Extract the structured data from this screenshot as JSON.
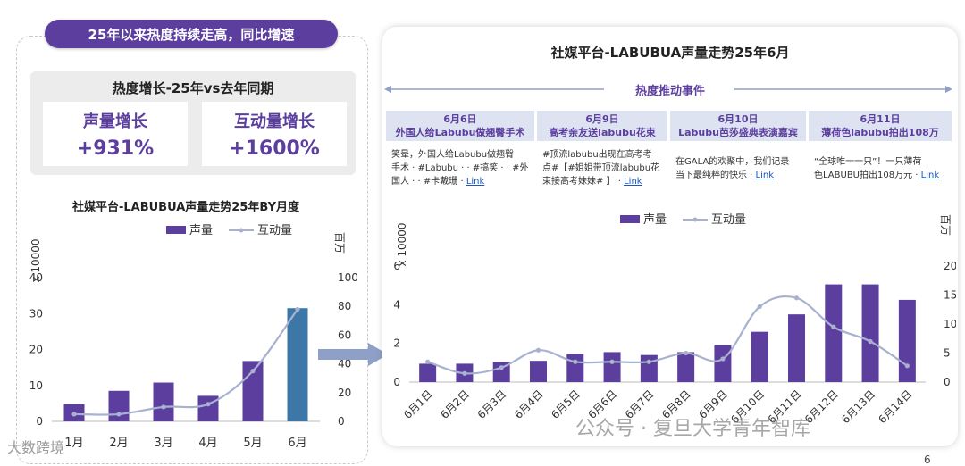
{
  "left": {
    "pill_text": "25年以来热度持续走高，同比增速",
    "growth_title": "热度增长-25年vs去年同期",
    "cards": [
      {
        "label": "声量增长",
        "value": "+931%"
      },
      {
        "label": "互动量增长",
        "value": "+1600%"
      }
    ]
  },
  "right": {
    "title": "社媒平台-LABUBUA声量走势25年6月",
    "events_header": "热度推动事件",
    "events": [
      {
        "date": "6月6日",
        "headline": "外国人给Labubu做翘臀手术",
        "lines": [
          "笑晕，外国人给Labubu做翘臀",
          "手术 · #Labubu · · #搞笑 · · #外",
          "国人 · · #卡戴珊 · "
        ],
        "link": "Link"
      },
      {
        "date": "6月9日",
        "headline": "高考亲友送labubu花束",
        "lines": [
          "#顶流labubu出现在高考考",
          "点#【#姐姐带顶流labubu花",
          "束接高考妹妹# 】 · "
        ],
        "link": "Link"
      },
      {
        "date": "6月10日",
        "headline": "Labubu芭莎盛典表演嘉宾",
        "lines": [
          "在GALA的欢聚中，我们记录",
          "当下最纯粹的快乐 · "
        ],
        "link": "Link"
      },
      {
        "date": "6月11日",
        "headline": "薄荷色labubu拍出108万",
        "lines": [
          "“全球唯一一只”！一只薄荷",
          "色LABUBU拍出108万元 · "
        ],
        "link": "Link"
      }
    ]
  },
  "chart_data": [
    {
      "type": "bar",
      "title": "社媒平台-LABUBUA声量走势25年BY月度",
      "categories": [
        "1月",
        "2月",
        "3月",
        "4月",
        "5月",
        "6月"
      ],
      "series": [
        {
          "name": "声量",
          "type": "bar",
          "axis": "left",
          "values": [
            4.8,
            8.5,
            10.8,
            7.1,
            16.8,
            31.5
          ]
        },
        {
          "name": "互动量",
          "type": "line",
          "axis": "right",
          "values": [
            5,
            5,
            10,
            12,
            35,
            78
          ]
        }
      ],
      "y_left_label": "x 10000",
      "y_left_ticks": [
        "0",
        "10",
        "20",
        "30",
        "40"
      ],
      "y_left_lim": [
        0,
        40
      ],
      "y_right_label": "百万",
      "y_right_ticks": [
        "0",
        "20",
        "40",
        "60",
        "80",
        "100"
      ],
      "y_right_lim": [
        0,
        100
      ],
      "legend": "top-center",
      "highlight_color": "#3d77a8",
      "bar_color": "#5b3e9e",
      "line_color": "#a8b2d0"
    },
    {
      "type": "bar",
      "title": "社媒平台-LABUBUA声量走势25年6月",
      "categories": [
        "6月1日",
        "6月2日",
        "6月3日",
        "6月4日",
        "6月5日",
        "6月6日",
        "6月7日",
        "6月8日",
        "6月9日",
        "6月10日",
        "6月11日",
        "6月12日",
        "6月13日",
        "6月14日"
      ],
      "series": [
        {
          "name": "声量",
          "type": "bar",
          "axis": "left",
          "values": [
            0.95,
            0.95,
            1.05,
            1.1,
            1.45,
            1.55,
            1.4,
            1.55,
            1.9,
            2.6,
            3.5,
            5.05,
            5.05,
            4.25
          ]
        },
        {
          "name": "互动量",
          "type": "line",
          "axis": "right",
          "values": [
            3.5,
            1.5,
            2.5,
            5.5,
            3.5,
            3.5,
            3.5,
            5,
            4,
            13,
            14.5,
            9.5,
            7,
            2.8
          ]
        }
      ],
      "y_left_label": "x 10000",
      "y_left_ticks": [
        "0",
        "2",
        "4",
        "6"
      ],
      "y_left_lim": [
        0,
        6
      ],
      "y_right_label": "百万",
      "y_right_ticks": [
        "0",
        "5",
        "10",
        "15",
        "20"
      ],
      "y_right_lim": [
        0,
        20
      ],
      "legend": "top-center",
      "bar_color": "#5b3e9e",
      "line_color": "#a8b2d0"
    }
  ],
  "watermarks": {
    "left": "大数跨境",
    "right": "公众号 · 复旦大学青年智库"
  },
  "page_number": "6",
  "colors": {
    "accent": "#5b3e9e",
    "event_head_bg": "#dde3f0",
    "link": "#1a56c4",
    "arrow": "#8ea0c8"
  }
}
